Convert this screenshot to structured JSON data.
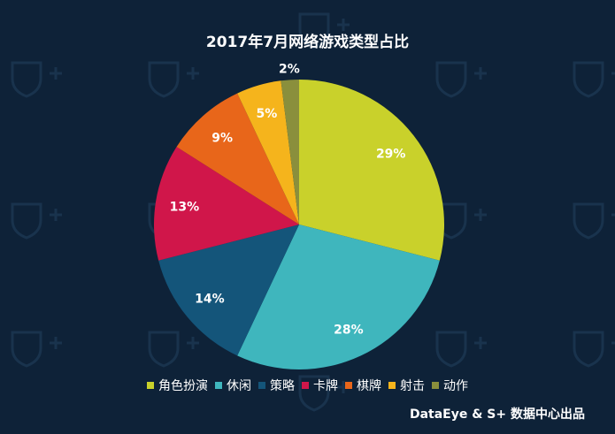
{
  "footer": "DataEye & S+ 数据中心出品",
  "chart_data": {
    "type": "pie",
    "title": "2017年7月网络游戏类型占比",
    "categories": [
      "角色扮演",
      "休闲",
      "策略",
      "卡牌",
      "棋牌",
      "射击",
      "动作"
    ],
    "values": [
      29,
      28,
      14,
      13,
      9,
      5,
      2
    ],
    "labels": [
      "29%",
      "28%",
      "14%",
      "13%",
      "9%",
      "5%",
      "2%"
    ],
    "colors": [
      "#c9d12b",
      "#3fb6bd",
      "#14557a",
      "#d0164a",
      "#e8661a",
      "#f5b41c",
      "#8a8f3c"
    ],
    "legend_position": "bottom"
  }
}
